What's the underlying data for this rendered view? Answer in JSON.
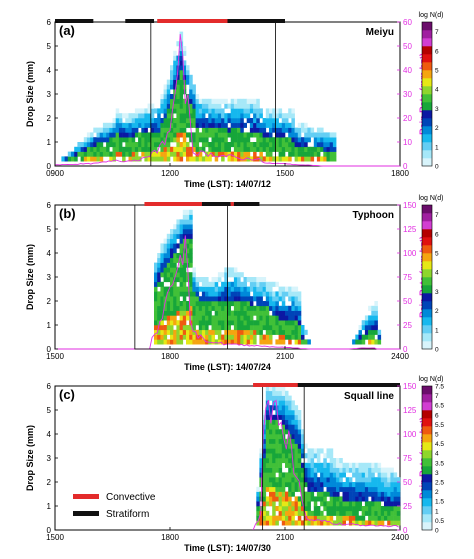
{
  "colors": {
    "colorbar": [
      "#d8f4fb",
      "#a6e8f8",
      "#63cef4",
      "#16b8ee",
      "#0089d9",
      "#0044b8",
      "#0c18a3",
      "#17a63a",
      "#41c038",
      "#8ed62d",
      "#e6e816",
      "#f5a510",
      "#ef5a10",
      "#e01010",
      "#b40000",
      "#d23ed2",
      "#a01fa0",
      "#6b0d6b"
    ],
    "series_line": "#e22ee2",
    "convective": "#e32b2b",
    "stratiform": "#111111"
  },
  "legend": {
    "convective": "Convective",
    "stratiform": "Stratiform"
  },
  "chart_data": [
    {
      "type": "heatmap",
      "panel_label": "(a)",
      "event_label": "Meiyu",
      "xlabel": "Time (LST): 14/07/12",
      "ylabel": "Drop Size (mm)",
      "y2label": "Rain Rate (mm h⁻¹)",
      "colorbar_title": "log N(d)",
      "xlim": [
        900,
        1800
      ],
      "xticks": [
        "0900",
        "1200",
        "1500",
        "1800"
      ],
      "ylim": [
        0,
        6
      ],
      "yticks": [
        "0",
        "1",
        "2",
        "3",
        "4",
        "5",
        "6"
      ],
      "y2lim": [
        0,
        60
      ],
      "y2ticks": [
        "0",
        "10",
        "20",
        "30",
        "40",
        "50",
        "60"
      ],
      "cbar_ticks": [
        "0",
        "1",
        "2",
        "3",
        "4",
        "5",
        "6",
        "7"
      ],
      "cbar_max": 7.5,
      "rain_window": [
        900,
        1800
      ],
      "time_points": [
        900,
        960,
        990,
        1020,
        1050,
        1080,
        1110,
        1140,
        1155,
        1165,
        1175,
        1185,
        1195,
        1210,
        1230,
        1260,
        1290,
        1320,
        1350,
        1380,
        1410,
        1440,
        1470,
        1500,
        1530,
        1560,
        1590,
        1620
      ],
      "drop_size_max": [
        0,
        1.5,
        1.8,
        2.4,
        2.0,
        2.4,
        2.2,
        2.6,
        3.6,
        4.8,
        5.6,
        4.2,
        3.4,
        3.0,
        2.9,
        2.7,
        2.6,
        2.8,
        2.7,
        2.6,
        2.4,
        2.3,
        2.2,
        1.9,
        1.6,
        1.4,
        1.1,
        0
      ],
      "drop_size_green_top": [
        0,
        0.8,
        1.1,
        1.3,
        1.1,
        1.3,
        1.2,
        1.4,
        2.2,
        3.2,
        4.0,
        3.0,
        2.2,
        1.8,
        1.6,
        1.5,
        1.4,
        1.5,
        1.4,
        1.4,
        1.2,
        1.1,
        1.0,
        0.8,
        0.7,
        0.6,
        0.4,
        0
      ],
      "rain_rate": [
        0.5,
        1,
        2,
        3,
        2,
        3,
        3,
        6,
        12,
        22,
        48,
        30,
        15,
        8,
        6,
        5,
        4,
        5,
        3,
        3,
        2,
        1,
        1,
        0.5,
        0.5,
        0,
        0,
        0
      ],
      "periods": [
        {
          "type": "stratiform",
          "start": 900,
          "end": 1000
        },
        {
          "type": "stratiform",
          "start": 1050,
          "end": 1080
        },
        {
          "type": "stratiform",
          "start": 1110,
          "end": 1135
        },
        {
          "type": "convective",
          "start": 1140,
          "end": 1290
        },
        {
          "type": "stratiform",
          "start": 1290,
          "end": 1500
        }
      ],
      "box": [
        1130,
        1445
      ]
    },
    {
      "type": "heatmap",
      "panel_label": "(b)",
      "event_label": "Typhoon",
      "xlabel": "Time (LST): 14/07/24",
      "ylabel": "Drop Size (mm)",
      "y2label": "Rain Rate (mm h⁻¹)",
      "colorbar_title": "log N(d)",
      "xlim": [
        1500,
        2400
      ],
      "xticks": [
        "1500",
        "1800",
        "2100",
        "2400"
      ],
      "ylim": [
        0,
        6
      ],
      "yticks": [
        "0",
        "1",
        "2",
        "3",
        "4",
        "5",
        "6"
      ],
      "y2lim": [
        0,
        150
      ],
      "y2ticks": [
        "0",
        "25",
        "50",
        "75",
        "100",
        "125",
        "150"
      ],
      "cbar_ticks": [
        "0",
        "1",
        "2",
        "3",
        "4",
        "5",
        "6",
        "7"
      ],
      "cbar_max": 7.5,
      "rain_window": [
        1500,
        2400
      ],
      "time_points": [
        1690,
        1700,
        1720,
        1740,
        1760,
        1775,
        1790,
        1805,
        1820,
        1840,
        1860,
        1880,
        1900,
        1930,
        1960,
        1990,
        2020,
        2050,
        2080,
        2110,
        2140,
        2240,
        2260,
        2270,
        2280,
        2300,
        2320,
        2330
      ],
      "drop_size_max": [
        0,
        2.2,
        3.0,
        4.0,
        5.0,
        5.6,
        5.8,
        5.4,
        4.0,
        3.0,
        2.8,
        3.1,
        3.2,
        3.4,
        3.0,
        2.8,
        2.7,
        2.6,
        2.4,
        2.0,
        0,
        0,
        1.2,
        1.6,
        1.8,
        1.9,
        1.6,
        0
      ],
      "drop_size_green_top": [
        0,
        1.0,
        1.6,
        2.8,
        3.8,
        4.4,
        4.6,
        4.0,
        2.8,
        2.0,
        1.8,
        1.9,
        1.9,
        1.9,
        1.8,
        1.6,
        1.4,
        1.2,
        1.0,
        0.8,
        0,
        0,
        0.5,
        0.7,
        0.8,
        0.8,
        0.6,
        0
      ],
      "rain_rate": [
        0,
        2,
        8,
        20,
        60,
        110,
        100,
        80,
        40,
        15,
        8,
        6,
        5,
        5,
        4,
        3,
        3,
        2,
        1,
        1,
        0,
        0,
        1,
        1,
        1,
        1,
        0,
        0
      ],
      "periods": [
        {
          "type": "convective",
          "start": 1720,
          "end": 1850
        },
        {
          "type": "stratiform",
          "start": 1850,
          "end": 1895
        },
        {
          "type": "convective",
          "start": 1895,
          "end": 1940
        },
        {
          "type": "stratiform",
          "start": 1940,
          "end": 2020
        }
      ],
      "box": [
        1705,
        1890
      ]
    },
    {
      "type": "heatmap",
      "panel_label": "(c)",
      "event_label": "Squall line",
      "xlabel": "Time (LST): 14/07/30",
      "ylabel": "Drop Size (mm)",
      "y2label": "Rain Rate (mm h⁻¹)",
      "colorbar_title": "log N(d)",
      "xlim": [
        1500,
        2400
      ],
      "xticks": [
        "1500",
        "1800",
        "2100",
        "2400"
      ],
      "ylim": [
        0,
        6
      ],
      "yticks": [
        "0",
        "1",
        "2",
        "3",
        "4",
        "5",
        "6"
      ],
      "y2lim": [
        0,
        150
      ],
      "y2ticks": [
        "0",
        "25",
        "50",
        "75",
        "100",
        "125",
        "150"
      ],
      "cbar_ticks": [
        "0",
        "0.5",
        "1",
        "1.5",
        "2",
        "2.5",
        "3",
        "3.5",
        "4",
        "4.5",
        "5",
        "5.5",
        "6",
        "6.5",
        "7",
        "7.5"
      ],
      "cbar_max": 7.5,
      "rain_window": [
        1970,
        2400
      ],
      "time_points": [
        1970,
        1985,
        2000,
        2020,
        2040,
        2060,
        2080,
        2090,
        2110,
        2140,
        2170,
        2200,
        2230,
        2260,
        2290,
        2320,
        2350,
        2380,
        2400
      ],
      "drop_size_max": [
        0,
        5.0,
        5.8,
        6.0,
        6.0,
        5.8,
        5.0,
        3.6,
        3.2,
        3.4,
        3.3,
        3.0,
        2.8,
        2.8,
        2.6,
        2.5,
        2.4,
        2.3,
        2.2
      ],
      "drop_size_green_top": [
        0,
        3.0,
        4.0,
        4.6,
        4.6,
        4.2,
        3.4,
        1.8,
        1.6,
        1.5,
        1.4,
        1.3,
        1.2,
        1.1,
        1.0,
        1.0,
        0.9,
        0.8,
        0.8
      ],
      "rain_rate": [
        0,
        20,
        60,
        110,
        130,
        100,
        60,
        20,
        12,
        10,
        8,
        8,
        6,
        5,
        5,
        4,
        4,
        3,
        3
      ],
      "periods": [
        {
          "type": "convective",
          "start": 2010,
          "end": 2085
        },
        {
          "type": "stratiform",
          "start": 2120,
          "end": 2400
        }
      ],
      "box": [
        1985,
        2090
      ]
    }
  ]
}
